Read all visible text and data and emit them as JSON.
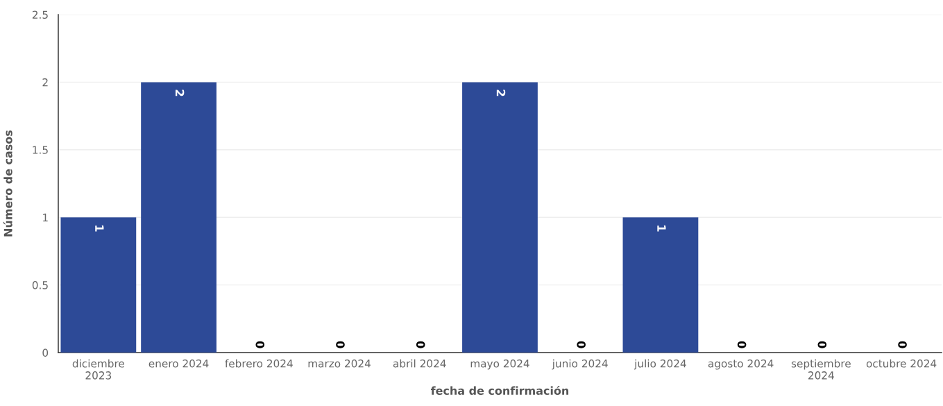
{
  "chart_data": {
    "type": "bar",
    "xlabel": "fecha de confirmación",
    "ylabel": "Número de casos",
    "categories": [
      "diciembre 2023",
      "enero 2024",
      "febrero 2024",
      "marzo 2024",
      "abril 2024",
      "mayo 2024",
      "junio 2024",
      "julio 2024",
      "agosto 2024",
      "septiembre 2024",
      "octubre 2024"
    ],
    "values": [
      1,
      2,
      0,
      0,
      0,
      2,
      0,
      1,
      0,
      0,
      0
    ],
    "color": "#2d4a97",
    "ylim": [
      0,
      2.5
    ],
    "yticks": [
      0,
      0.5,
      1,
      1.5,
      2,
      2.5
    ],
    "grid": "y",
    "data_labels": true
  }
}
